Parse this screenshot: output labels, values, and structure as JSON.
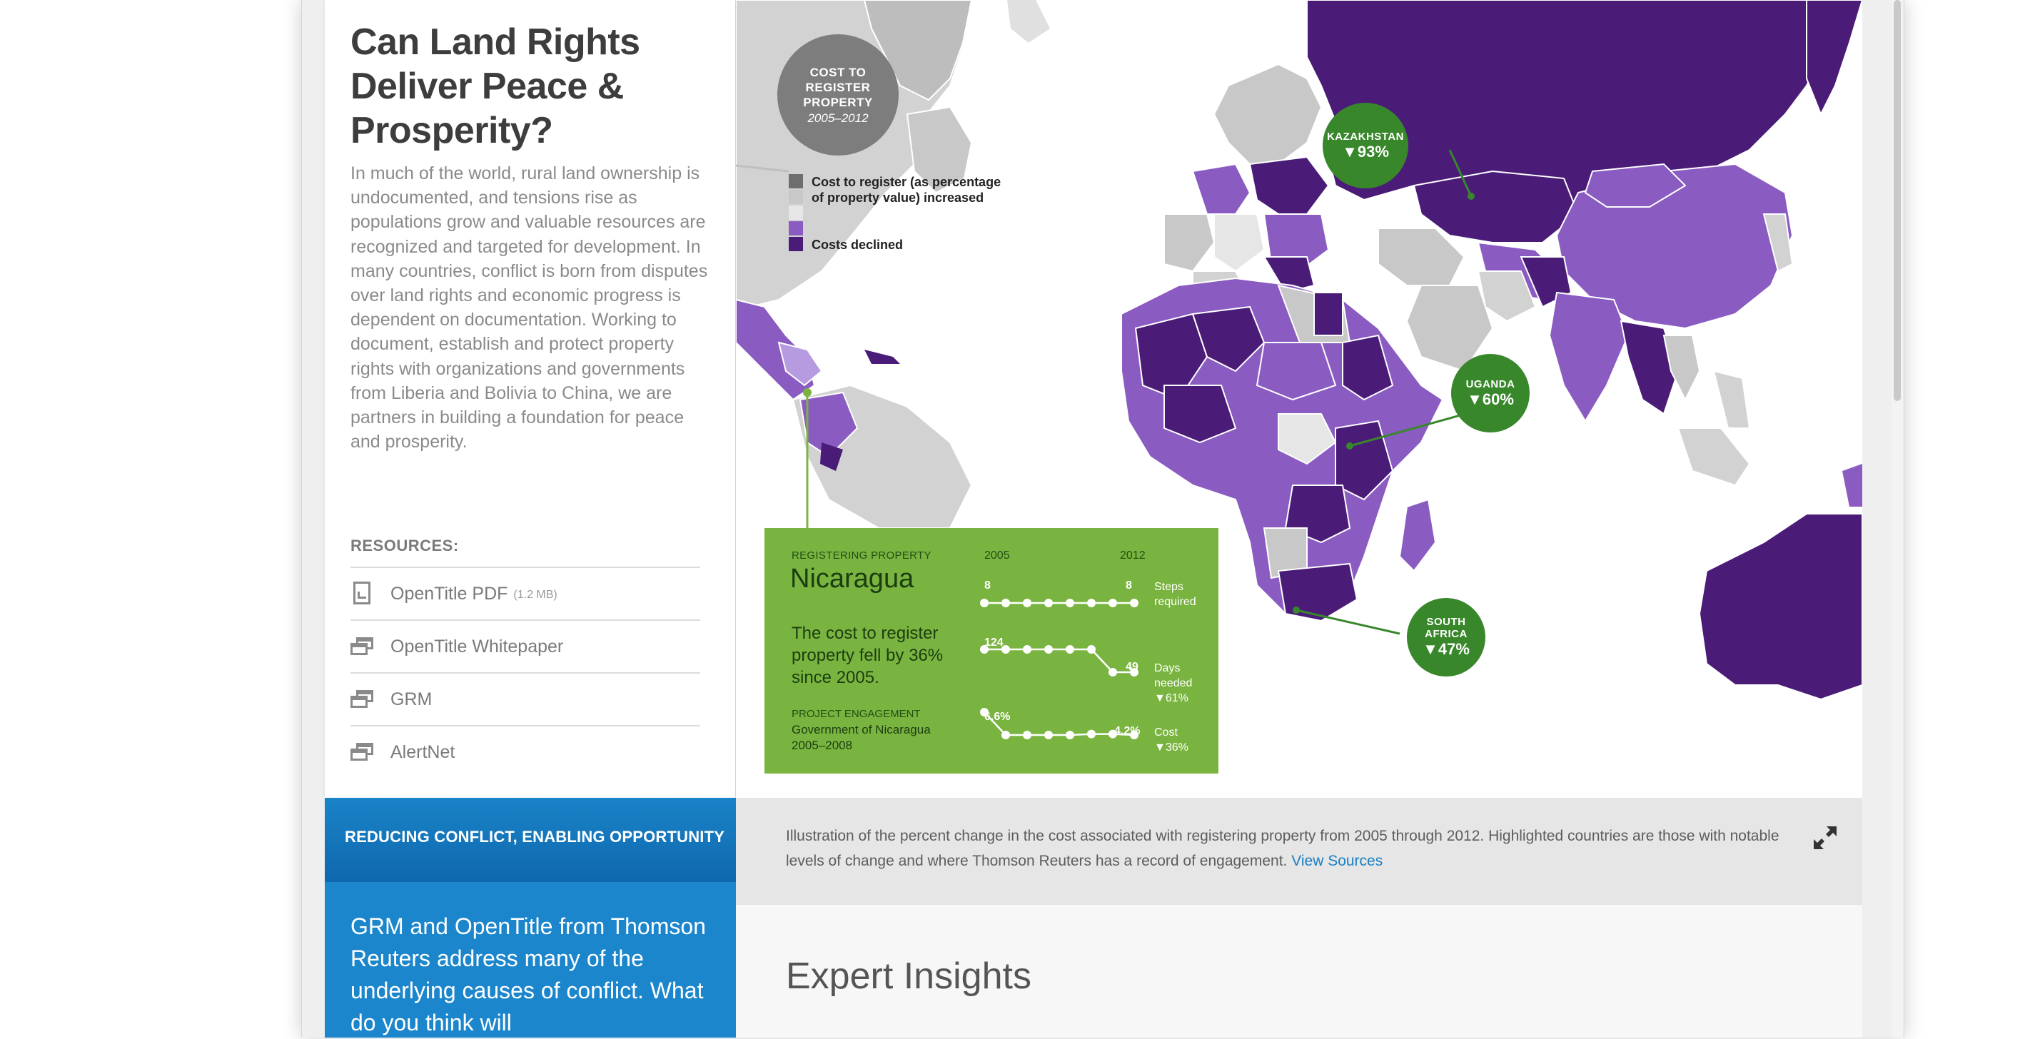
{
  "sidebar": {
    "title": "Can Land Rights\nDeliver Peace &\nProsperity?",
    "intro": "In much of the world, rural land ownership is undocumented, and tensions rise as populations grow and valuable resources are recognized and targeted for development. In many countries, conflict is born from disputes over land rights and economic progress is dependent on documentation. Working to document, establish and protect property rights with organizations and governments from Liberia and Bolivia to China, we are partners in building a foundation for peace and prosperity.",
    "resources_heading": "RESOURCES:",
    "resources": [
      {
        "label": "OpenTitle PDF",
        "size": "(1.2 MB)",
        "icon": "pdf-icon"
      },
      {
        "label": "OpenTitle Whitepaper",
        "size": "",
        "icon": "window-icon"
      },
      {
        "label": "GRM",
        "size": "",
        "icon": "window-icon"
      },
      {
        "label": "AlertNet",
        "size": "",
        "icon": "window-icon"
      }
    ]
  },
  "map": {
    "cost_bubble": {
      "title": "COST TO\nREGISTER\nPROPERTY",
      "years": "2005–2012"
    },
    "legend": {
      "increased": "Cost to register (as percentage\nof property value) increased",
      "declined": "Costs declined",
      "colors": [
        "#6e6e6e",
        "#c8c8c8",
        "#e6e6e6",
        "#8a5cc2",
        "#4a1c78"
      ]
    },
    "callouts": [
      {
        "name": "KAZAKHSTAN",
        "value": "▼93%"
      },
      {
        "name": "UGANDA",
        "value": "▼60%"
      },
      {
        "name": "SOUTH\nAFRICA",
        "value": "▼47%"
      }
    ]
  },
  "nicaragua": {
    "kicker": "REGISTERING PROPERTY",
    "country": "Nicaragua",
    "summary": "The cost to register property fell by 36%  since 2005.",
    "engagement_label": "PROJECT ENGAGEMENT",
    "engagement_text": "Government of Nicaragua\n2005–2008",
    "year_start": "2005",
    "year_end": "2012",
    "metrics": [
      {
        "start_label": "8",
        "end_label": "8",
        "caption": "Steps\nrequired",
        "values": [
          8,
          8,
          8,
          8,
          8,
          8,
          8,
          8
        ]
      },
      {
        "start_label": "124",
        "end_label": "49",
        "caption": "Days\nneeded\n▼61%",
        "values": [
          124,
          124,
          124,
          124,
          124,
          124,
          49,
          49
        ]
      },
      {
        "start_label": "6.6%",
        "end_label": "4.2%",
        "caption": "Cost\n▼36%",
        "values": [
          6.6,
          4.2,
          4.2,
          4.2,
          4.2,
          4.3,
          4.3,
          4.2
        ]
      }
    ]
  },
  "caption": {
    "text": "Illustration of the percent change in the cost associated with registering property from 2005 through 2012. Highlighted countries are those with notable levels of change and where Thomson Reuters has a record of engagement.",
    "link": "View Sources"
  },
  "conflict": {
    "heading": "REDUCING CONFLICT, ENABLING OPPORTUNITY",
    "body": "GRM and OpenTitle from Thomson Reuters address many of the underlying causes of conflict. What do you think will"
  },
  "insights": {
    "title": "Expert Insights"
  }
}
